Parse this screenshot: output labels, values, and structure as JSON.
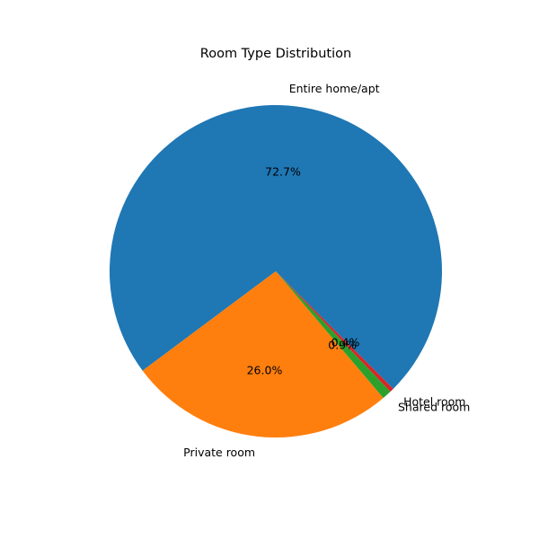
{
  "chart_data": {
    "type": "pie",
    "title": "Room Type Distribution",
    "slices": [
      {
        "label": "Entire home/apt",
        "value": 72.7,
        "pct_label": "72.7%",
        "color": "#1f77b4"
      },
      {
        "label": "Private room",
        "value": 26.0,
        "pct_label": "26.0%",
        "color": "#ff7f0e"
      },
      {
        "label": "Shared room",
        "value": 0.9,
        "pct_label": "0.9%",
        "color": "#2ca02c"
      },
      {
        "label": "Hotel room",
        "value": 0.4,
        "pct_label": "0.4%",
        "color": "#d62728"
      }
    ],
    "legend": "none"
  }
}
